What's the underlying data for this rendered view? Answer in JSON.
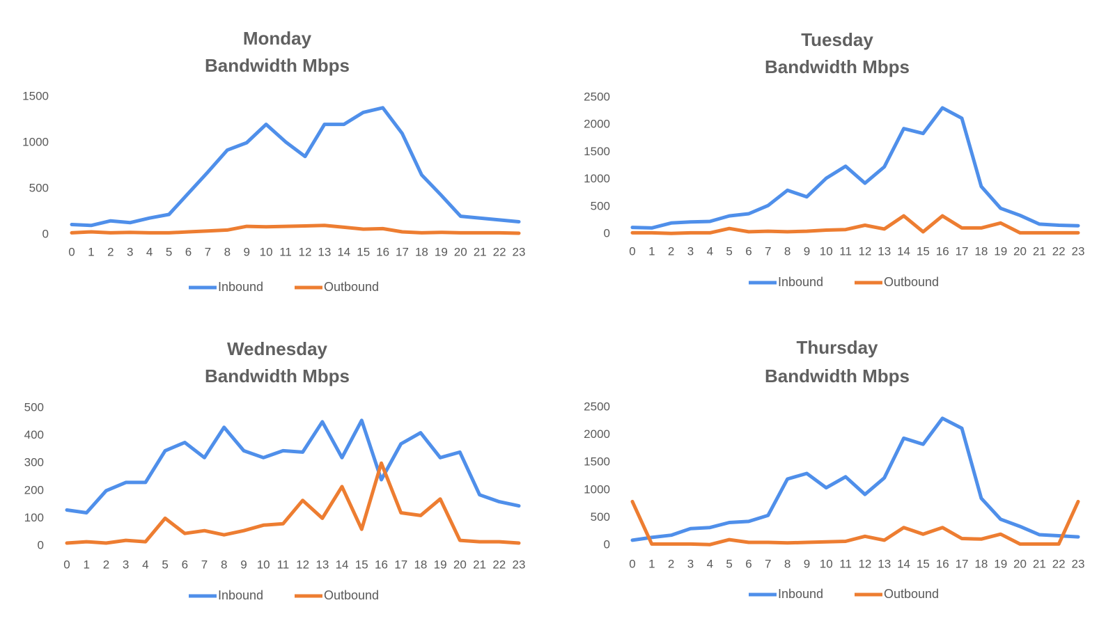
{
  "colors": {
    "inbound": "#4F8FEA",
    "outbound": "#ED7D31"
  },
  "chart_data": [
    {
      "type": "line",
      "title": [
        "Monday",
        "Bandwidth Mbps"
      ],
      "x": [
        0,
        1,
        2,
        3,
        4,
        5,
        6,
        7,
        8,
        9,
        10,
        11,
        12,
        13,
        14,
        15,
        16,
        17,
        18,
        19,
        20,
        21,
        22,
        23
      ],
      "ylim": [
        0,
        1500
      ],
      "yticks": [
        0,
        500,
        1000,
        1500
      ],
      "grid": false,
      "legend": "bottom",
      "series": [
        {
          "name": "Inbound",
          "values": [
            110,
            100,
            150,
            130,
            180,
            220,
            450,
            680,
            920,
            1000,
            1200,
            1010,
            850,
            1200,
            1200,
            1330,
            1380,
            1100,
            650,
            430,
            200,
            180,
            160,
            140
          ]
        },
        {
          "name": "Outbound",
          "values": [
            20,
            30,
            20,
            25,
            20,
            20,
            30,
            40,
            50,
            90,
            85,
            90,
            95,
            100,
            80,
            60,
            65,
            30,
            20,
            25,
            20,
            20,
            20,
            15
          ]
        }
      ]
    },
    {
      "type": "line",
      "title": [
        "Tuesday",
        "Bandwidth Mbps"
      ],
      "x": [
        0,
        1,
        2,
        3,
        4,
        5,
        6,
        7,
        8,
        9,
        10,
        11,
        12,
        13,
        14,
        15,
        16,
        17,
        18,
        19,
        20,
        21,
        22,
        23
      ],
      "ylim": [
        0,
        2500
      ],
      "yticks": [
        0,
        500,
        1000,
        1500,
        2000,
        2500
      ],
      "grid": false,
      "legend": "bottom",
      "series": [
        {
          "name": "Inbound",
          "values": [
            120,
            110,
            200,
            220,
            230,
            330,
            370,
            520,
            800,
            680,
            1020,
            1240,
            930,
            1230,
            1930,
            1840,
            2310,
            2120,
            870,
            470,
            340,
            180,
            160,
            150
          ]
        },
        {
          "name": "Outbound",
          "values": [
            20,
            20,
            10,
            20,
            20,
            100,
            40,
            50,
            40,
            50,
            70,
            80,
            160,
            90,
            330,
            40,
            330,
            110,
            110,
            200,
            20,
            20,
            20,
            20
          ]
        }
      ]
    },
    {
      "type": "line",
      "title": [
        "Wednesday",
        "Bandwidth Mbps"
      ],
      "x": [
        0,
        1,
        2,
        3,
        4,
        5,
        6,
        7,
        8,
        9,
        10,
        11,
        12,
        13,
        14,
        15,
        16,
        17,
        18,
        19,
        20,
        21,
        22,
        23
      ],
      "ylim": [
        0,
        500
      ],
      "yticks": [
        0,
        100,
        200,
        300,
        400,
        500
      ],
      "grid": false,
      "legend": "bottom",
      "series": [
        {
          "name": "Inbound",
          "values": [
            130,
            120,
            200,
            230,
            230,
            345,
            375,
            320,
            430,
            345,
            320,
            345,
            340,
            450,
            320,
            455,
            240,
            370,
            410,
            320,
            340,
            185,
            160,
            145
          ]
        },
        {
          "name": "Outbound",
          "values": [
            10,
            15,
            10,
            20,
            15,
            100,
            45,
            55,
            40,
            55,
            75,
            80,
            165,
            100,
            215,
            60,
            300,
            120,
            110,
            170,
            20,
            15,
            15,
            10
          ]
        }
      ]
    },
    {
      "type": "line",
      "title": [
        "Thursday",
        "Bandwidth Mbps"
      ],
      "x": [
        0,
        1,
        2,
        3,
        4,
        5,
        6,
        7,
        8,
        9,
        10,
        11,
        12,
        13,
        14,
        15,
        16,
        17,
        18,
        19,
        20,
        21,
        22,
        23
      ],
      "ylim": [
        0,
        2500
      ],
      "yticks": [
        0,
        500,
        1000,
        1500,
        2000,
        2500
      ],
      "grid": false,
      "legend": "bottom",
      "series": [
        {
          "name": "Inbound",
          "values": [
            90,
            140,
            180,
            300,
            320,
            410,
            430,
            540,
            1200,
            1300,
            1040,
            1240,
            920,
            1220,
            1940,
            1830,
            2300,
            2120,
            850,
            470,
            340,
            190,
            170,
            150
          ]
        },
        {
          "name": "Outbound",
          "values": [
            790,
            20,
            20,
            20,
            10,
            100,
            50,
            50,
            40,
            50,
            60,
            70,
            160,
            90,
            320,
            200,
            320,
            120,
            110,
            200,
            20,
            20,
            20,
            790
          ]
        }
      ]
    }
  ]
}
